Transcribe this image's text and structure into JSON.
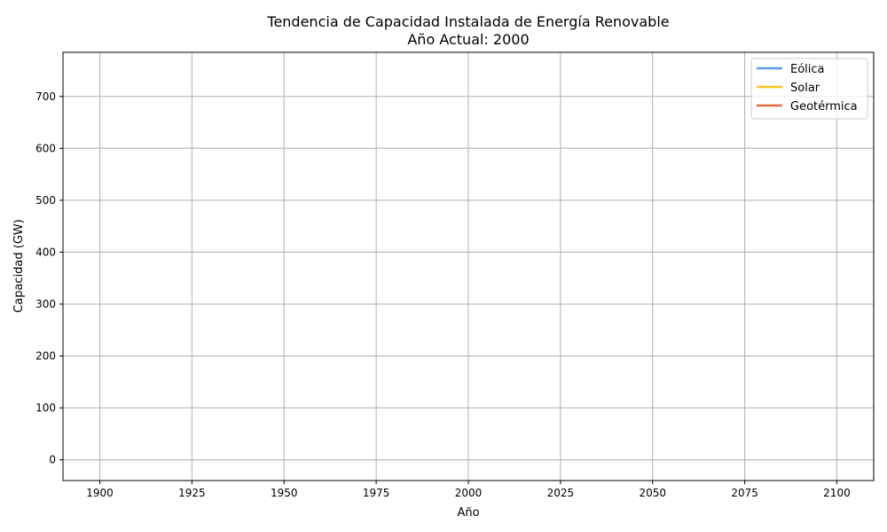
{
  "chart_data": {
    "type": "line",
    "title": "Tendencia de Capacidad Instalada de Energía Renovable",
    "subtitle": "Año Actual: 2000",
    "xlabel": "Año",
    "ylabel": "Capacidad (GW)",
    "xlim": [
      1890,
      2110
    ],
    "ylim": [
      -40,
      785
    ],
    "xticks": [
      1900,
      1925,
      1950,
      1975,
      2000,
      2025,
      2050,
      2075,
      2100
    ],
    "yticks": [
      0,
      100,
      200,
      300,
      400,
      500,
      600,
      700
    ],
    "grid": true,
    "legend_position": "top-right",
    "series": [
      {
        "name": "Eólica",
        "color": "#5b9bef",
        "x": [],
        "values": []
      },
      {
        "name": "Solar",
        "color": "#f5c518",
        "x": [],
        "values": []
      },
      {
        "name": "Geotérmica",
        "color": "#ef6a3a",
        "x": [],
        "values": []
      }
    ]
  }
}
